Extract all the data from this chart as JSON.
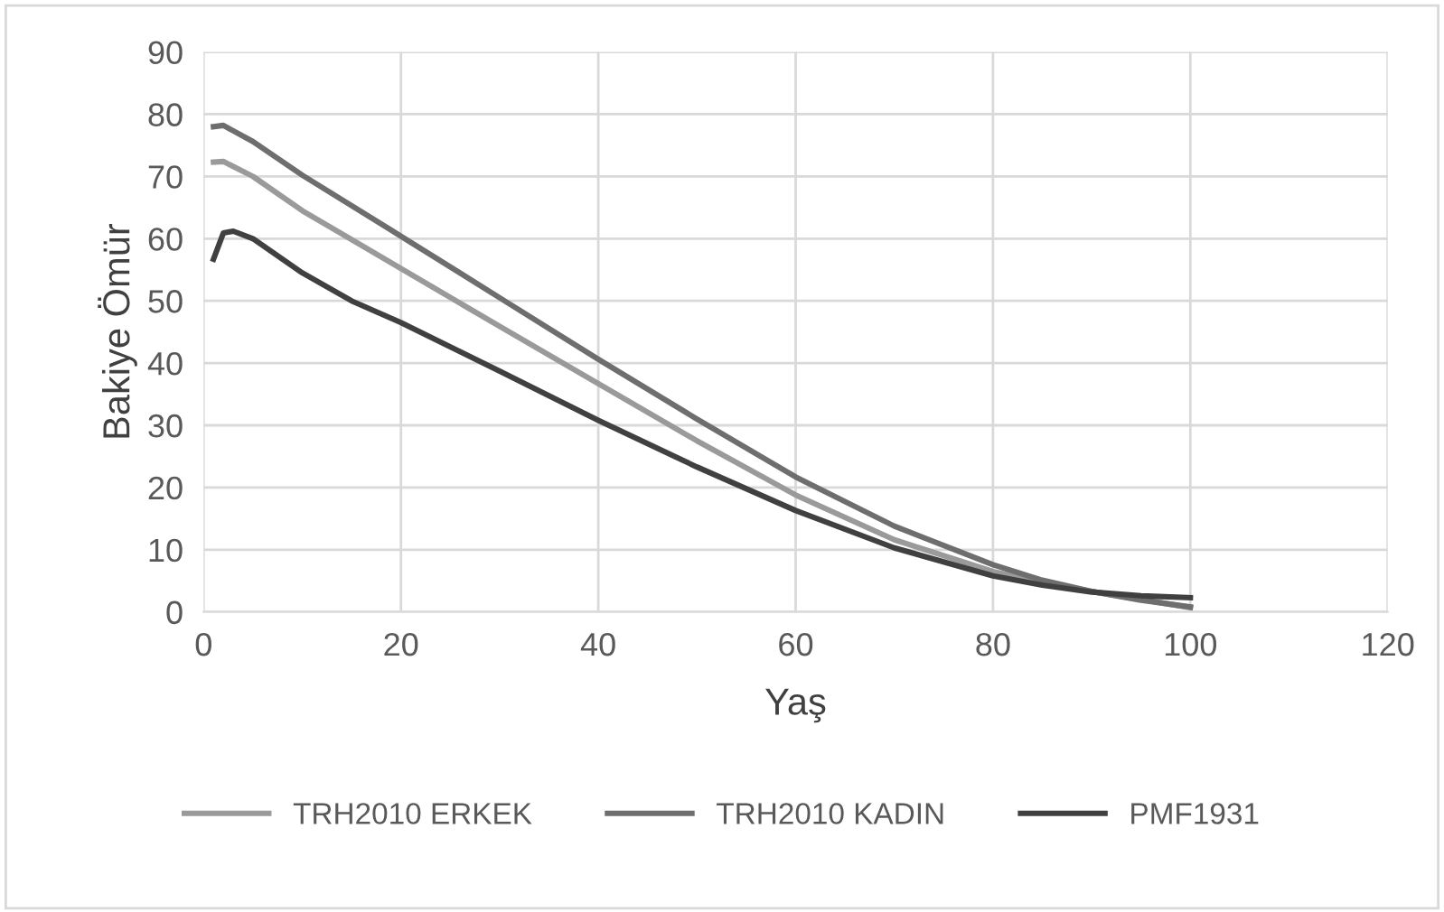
{
  "chart_data": {
    "type": "line",
    "xlabel": "Yaş",
    "ylabel": "Bakiye Ömür",
    "xlim": [
      0,
      120
    ],
    "xticks": [
      0,
      20,
      40,
      60,
      80,
      100,
      120
    ],
    "ylim": [
      0,
      90
    ],
    "yticks": [
      0,
      10,
      20,
      30,
      40,
      50,
      60,
      70,
      80,
      90
    ],
    "grid": true,
    "legend": "bottom",
    "marker": "none",
    "line_style": "solid",
    "series": [
      {
        "name": "TRH2010 ERKEK",
        "color": "#9a9a9a",
        "x": [
          1,
          2,
          5,
          10,
          20,
          30,
          40,
          50,
          60,
          70,
          80,
          85,
          90,
          95,
          100
        ],
        "values": [
          72.3,
          72.4,
          70,
          64.5,
          55.2,
          45.9,
          36.7,
          27.5,
          18.8,
          11.6,
          6.5,
          4.8,
          3.3,
          2.0,
          0.7
        ]
      },
      {
        "name": "TRH2010 KADIN",
        "color": "#6e6e6e",
        "x": [
          1,
          2,
          5,
          10,
          20,
          30,
          40,
          50,
          60,
          70,
          80,
          85,
          90,
          95,
          100
        ],
        "values": [
          78,
          78.2,
          75.6,
          70.2,
          60.4,
          50.5,
          40.6,
          31,
          21.7,
          13.8,
          7.6,
          5.1,
          3.3,
          1.9,
          0.8
        ]
      },
      {
        "name": "PMF1931",
        "color": "#404040",
        "x": [
          1,
          2,
          3,
          5,
          10,
          15,
          20,
          30,
          40,
          50,
          60,
          70,
          80,
          85,
          90,
          95,
          100
        ],
        "values": [
          56.7,
          60.9,
          61.2,
          60,
          54.5,
          50,
          46.5,
          38.7,
          30.8,
          23.3,
          16.3,
          10.3,
          5.8,
          4.3,
          3.2,
          2.6,
          2.3
        ]
      }
    ]
  }
}
